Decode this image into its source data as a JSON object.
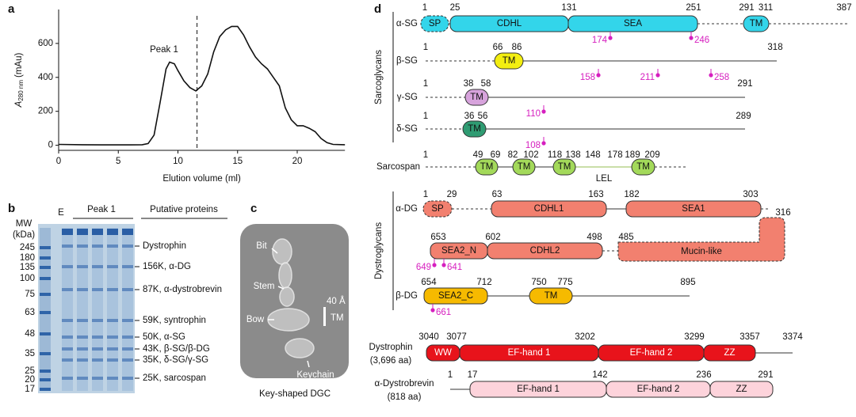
{
  "chart_data": {
    "type": "line",
    "panel_label": "a",
    "x": [
      0,
      2,
      4,
      6,
      7,
      7.5,
      8,
      8.5,
      9,
      9.3,
      9.7,
      10,
      10.5,
      11,
      11.5,
      12,
      12.5,
      13,
      13.5,
      14,
      14.5,
      15,
      15.5,
      16,
      16.5,
      17,
      17.5,
      18,
      18.5,
      19,
      19.5,
      20,
      20.5,
      21,
      21.5,
      22,
      22.5,
      23,
      24
    ],
    "values": [
      5,
      3,
      2,
      2,
      3,
      10,
      60,
      250,
      450,
      490,
      480,
      440,
      380,
      340,
      320,
      350,
      420,
      550,
      640,
      680,
      700,
      700,
      650,
      580,
      520,
      480,
      450,
      400,
      350,
      220,
      150,
      115,
      115,
      100,
      80,
      40,
      15,
      5,
      3
    ],
    "color": "#111111",
    "xlim": [
      0,
      24
    ],
    "ylim": [
      -30,
      800
    ],
    "xticks": [
      0,
      5,
      10,
      15,
      20
    ],
    "yticks": [
      0,
      200,
      400,
      600
    ],
    "xlabel": "Elution volume (ml)",
    "ylabel": {
      "main": "A",
      "sub": "280 nm",
      "unit": "(mAu)"
    },
    "annotation": "Peak 1",
    "marker_x": 11.6
  },
  "panel_b": {
    "label": "b",
    "mw_title": [
      "MW",
      "(kDa)"
    ],
    "lane_e": "E",
    "peak": "Peak 1",
    "putative_header": "Putative proteins",
    "markers": [
      245,
      180,
      135,
      100,
      75,
      63,
      48,
      35,
      25,
      20,
      17
    ],
    "proteins": [
      "Dystrophin",
      "156K, α-DG",
      "87K, α-dystrobrevin",
      "59K, syntrophin",
      "50K, α-SG",
      "43K, β-SG/β-DG",
      "35K, δ-SG/γ-SG",
      "25K, sarcospan"
    ]
  },
  "panel_c": {
    "label": "c",
    "annotations": [
      "Bit",
      "Stem",
      "Bow",
      "Keychain"
    ],
    "scale": "40 Å",
    "tm": "TM",
    "caption": "Key-shaped DGC"
  },
  "panel_d": {
    "label": "d",
    "groups": [
      "Sarcoglycans",
      "Dystroglycans"
    ],
    "proteins": [
      {
        "name": "α-SG",
        "positions": [
          1,
          25,
          131,
          251,
          291,
          311,
          387
        ],
        "domains": [
          "SP",
          "CDHL",
          "SEA",
          "TM"
        ],
        "sites": [
          174,
          246
        ]
      },
      {
        "name": "β-SG",
        "positions": [
          1,
          66,
          86,
          318
        ],
        "domains": [
          "TM"
        ],
        "sites": [
          158,
          211,
          258
        ]
      },
      {
        "name": "γ-SG",
        "positions": [
          1,
          38,
          58,
          291
        ],
        "domains": [
          "TM"
        ],
        "sites": [
          110
        ]
      },
      {
        "name": "δ-SG",
        "positions": [
          1,
          36,
          56,
          289
        ],
        "domains": [
          "TM"
        ],
        "sites": [
          108
        ]
      },
      {
        "name": "Sarcospan",
        "positions": [
          1,
          49,
          69,
          82,
          102,
          118,
          138,
          148,
          178,
          189,
          209
        ],
        "domains": [
          "TM",
          "TM",
          "TM",
          "TM"
        ],
        "loop": "LEL"
      },
      {
        "name": "α-DG",
        "positions": [
          1,
          29,
          63,
          163,
          182,
          303,
          316,
          653,
          602,
          498,
          485
        ],
        "domains": [
          "SP",
          "CDHL1",
          "SEA1",
          "SEA2_N",
          "CDHL2",
          "Mucin-like"
        ],
        "sites": [
          649,
          641
        ]
      },
      {
        "name": "β-DG",
        "positions": [
          654,
          712,
          750,
          775,
          895
        ],
        "domains": [
          "SEA2_C",
          "TM"
        ],
        "sites": [
          661
        ]
      },
      {
        "name": "Dystrophin",
        "length": "(3,696 aa)",
        "positions": [
          3040,
          3077,
          3202,
          3299,
          3357,
          3374
        ],
        "domains": [
          "WW",
          "EF-hand 1",
          "EF-hand 2",
          "ZZ"
        ]
      },
      {
        "name": "α-Dystrobrevin",
        "length": "(818 aa)",
        "positions": [
          1,
          17,
          142,
          236,
          291
        ],
        "domains": [
          "EF-hand 1",
          "EF-hand 2",
          "ZZ"
        ]
      }
    ]
  }
}
